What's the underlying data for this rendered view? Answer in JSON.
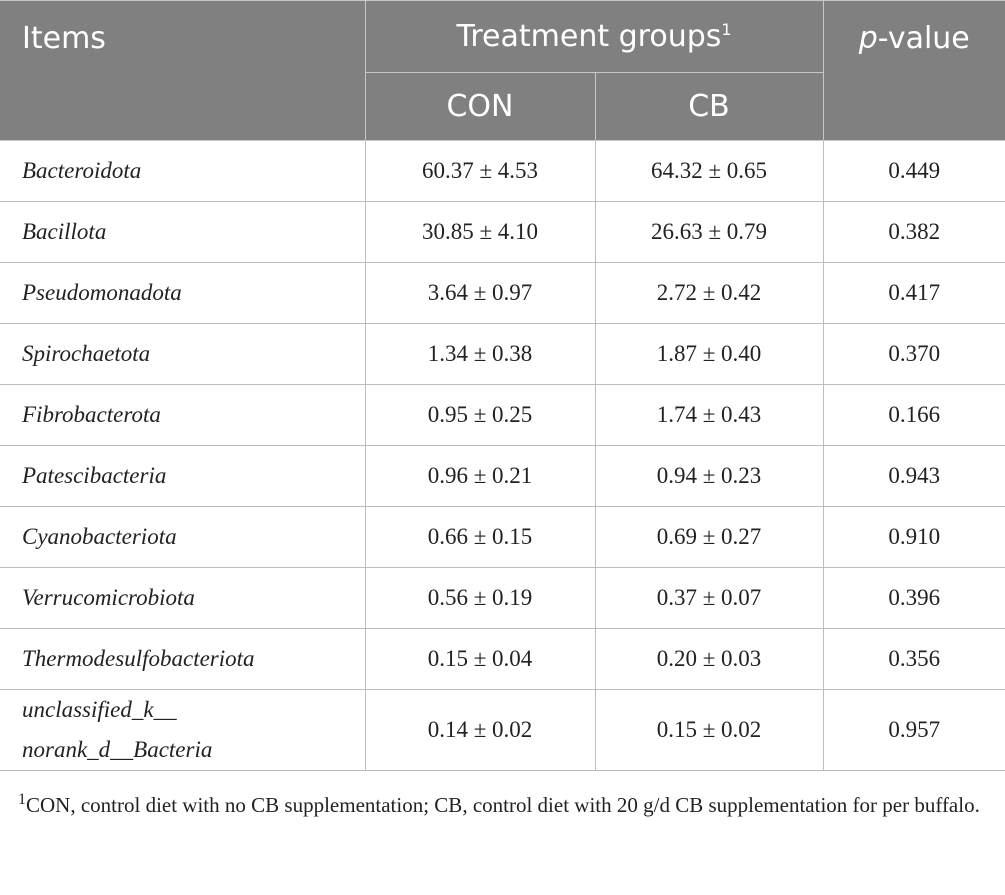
{
  "header": {
    "items": "Items",
    "treatment": "Treatment groups",
    "treatment_mark": "1",
    "p_italic": "p",
    "p_rest": "-value",
    "groups": [
      "CON",
      "CB"
    ]
  },
  "table": {
    "rows": [
      [
        "Bacteroidota",
        "60.37 ± 4.53",
        "64.32 ± 0.65",
        "0.449"
      ],
      [
        "Bacillota",
        "30.85 ± 4.10",
        "26.63 ± 0.79",
        "0.382"
      ],
      [
        "Pseudomonadota",
        "3.64 ± 0.97",
        "2.72 ± 0.42",
        "0.417"
      ],
      [
        "Spirochaetota",
        "1.34 ± 0.38",
        "1.87 ± 0.40",
        "0.370"
      ],
      [
        "Fibrobacterota",
        "0.95 ± 0.25",
        "1.74 ± 0.43",
        "0.166"
      ],
      [
        "Patescibacteria",
        "0.96 ± 0.21",
        "0.94 ± 0.23",
        "0.943"
      ],
      [
        "Cyanobacteriota",
        "0.66 ± 0.15",
        "0.69 ± 0.27",
        "0.910"
      ],
      [
        "Verrucomicrobiota",
        "0.56 ± 0.19",
        "0.37 ± 0.07",
        "0.396"
      ],
      [
        "Thermodesulfobacteriota",
        "0.15 ± 0.04",
        "0.20 ± 0.03",
        "0.356"
      ],
      [
        "unclassified_k__\nnorank_d__Bacteria",
        "0.14 ± 0.02",
        "0.15 ± 0.02",
        "0.957"
      ]
    ]
  },
  "footnote": {
    "mark": "1",
    "text": "CON, control diet with no CB supplementation; CB, control diet with 20 g/d CB supplementation for per buffalo."
  }
}
